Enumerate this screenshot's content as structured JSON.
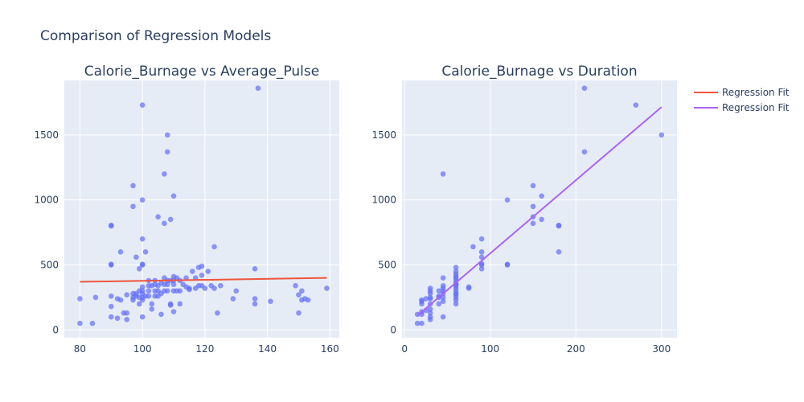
{
  "figure_title": "Comparison of Regression Models",
  "legend": {
    "placement": "top-right",
    "items": [
      {
        "label": "Regression Fit",
        "color": "#EF553B"
      },
      {
        "label": "Regression Fit",
        "color": "#AB63FA"
      }
    ]
  },
  "colors": {
    "plot_background": "#E5ECF6",
    "grid": "#ffffff",
    "marker": "#636EFA",
    "text": "#2a3f5f"
  },
  "chart_data": [
    {
      "type": "scatter",
      "title": "Calorie_Burnage vs Average_Pulse",
      "xlabel": "",
      "ylabel": "",
      "xlim": [
        75,
        163
      ],
      "ylim": [
        -60,
        1920
      ],
      "x_ticks": [
        80,
        100,
        120,
        140,
        160
      ],
      "y_ticks": [
        0,
        500,
        1000,
        1500
      ],
      "grid": true,
      "points": [
        [
          80,
          50
        ],
        [
          80,
          240
        ],
        [
          84,
          50
        ],
        [
          85,
          250
        ],
        [
          90,
          800
        ],
        [
          90,
          805
        ],
        [
          90,
          500
        ],
        [
          90,
          505
        ],
        [
          90,
          260
        ],
        [
          90,
          180
        ],
        [
          90,
          100
        ],
        [
          92,
          240
        ],
        [
          92,
          90
        ],
        [
          93,
          230
        ],
        [
          93,
          600
        ],
        [
          94,
          130
        ],
        [
          95,
          270
        ],
        [
          95,
          130
        ],
        [
          95,
          80
        ],
        [
          97,
          1110
        ],
        [
          97,
          950
        ],
        [
          97,
          280
        ],
        [
          97,
          250
        ],
        [
          97,
          230
        ],
        [
          98,
          560
        ],
        [
          98,
          280
        ],
        [
          98,
          260
        ],
        [
          99,
          470
        ],
        [
          99,
          300
        ],
        [
          99,
          250
        ],
        [
          99,
          200
        ],
        [
          100,
          1730
        ],
        [
          100,
          1000
        ],
        [
          100,
          700
        ],
        [
          100,
          505
        ],
        [
          100,
          500
        ],
        [
          100,
          330
        ],
        [
          100,
          300
        ],
        [
          100,
          280
        ],
        [
          100,
          250
        ],
        [
          100,
          230
        ],
        [
          100,
          100
        ],
        [
          101,
          600
        ],
        [
          101,
          260
        ],
        [
          102,
          380
        ],
        [
          102,
          340
        ],
        [
          102,
          300
        ],
        [
          102,
          260
        ],
        [
          103,
          340
        ],
        [
          103,
          200
        ],
        [
          103,
          160
        ],
        [
          104,
          380
        ],
        [
          104,
          350
        ],
        [
          104,
          300
        ],
        [
          104,
          260
        ],
        [
          105,
          870
        ],
        [
          105,
          340
        ],
        [
          105,
          300
        ],
        [
          105,
          260
        ],
        [
          106,
          360
        ],
        [
          106,
          280
        ],
        [
          106,
          120
        ],
        [
          107,
          1200
        ],
        [
          107,
          820
        ],
        [
          107,
          400
        ],
        [
          107,
          350
        ],
        [
          107,
          300
        ],
        [
          108,
          1500
        ],
        [
          108,
          1370
        ],
        [
          108,
          380
        ],
        [
          108,
          350
        ],
        [
          108,
          300
        ],
        [
          109,
          850
        ],
        [
          109,
          380
        ],
        [
          109,
          200
        ],
        [
          109,
          190
        ],
        [
          110,
          1030
        ],
        [
          110,
          410
        ],
        [
          110,
          380
        ],
        [
          110,
          350
        ],
        [
          110,
          300
        ],
        [
          110,
          140
        ],
        [
          111,
          400
        ],
        [
          111,
          300
        ],
        [
          112,
          380
        ],
        [
          112,
          300
        ],
        [
          112,
          200
        ],
        [
          113,
          350
        ],
        [
          114,
          400
        ],
        [
          114,
          330
        ],
        [
          115,
          320
        ],
        [
          115,
          310
        ],
        [
          116,
          450
        ],
        [
          117,
          400
        ],
        [
          117,
          320
        ],
        [
          118,
          480
        ],
        [
          118,
          340
        ],
        [
          119,
          490
        ],
        [
          119,
          420
        ],
        [
          119,
          340
        ],
        [
          120,
          320
        ],
        [
          121,
          450
        ],
        [
          122,
          340
        ],
        [
          123,
          640
        ],
        [
          123,
          320
        ],
        [
          124,
          130
        ],
        [
          125,
          340
        ],
        [
          129,
          240
        ],
        [
          130,
          300
        ],
        [
          136,
          470
        ],
        [
          136,
          240
        ],
        [
          136,
          200
        ],
        [
          137,
          1860
        ],
        [
          141,
          220
        ],
        [
          149,
          340
        ],
        [
          150,
          270
        ],
        [
          150,
          130
        ],
        [
          151,
          230
        ],
        [
          151,
          300
        ],
        [
          152,
          240
        ],
        [
          153,
          230
        ],
        [
          159,
          320
        ]
      ],
      "series": [
        {
          "name": "Regression Fit",
          "x": [
            80,
            159
          ],
          "y": [
            370,
            400
          ]
        }
      ]
    },
    {
      "type": "scatter",
      "title": "Calorie_Burnage vs Duration",
      "xlabel": "",
      "ylabel": "",
      "xlim": [
        -3,
        318
      ],
      "ylim": [
        -60,
        1920
      ],
      "x_ticks": [
        0,
        100,
        200,
        300
      ],
      "y_ticks": [
        0,
        500,
        1000,
        1500
      ],
      "grid": true,
      "points": [
        [
          15,
          50
        ],
        [
          15,
          120
        ],
        [
          20,
          50
        ],
        [
          20,
          120
        ],
        [
          20,
          140
        ],
        [
          20,
          200
        ],
        [
          20,
          220
        ],
        [
          20,
          230
        ],
        [
          25,
          240
        ],
        [
          25,
          150
        ],
        [
          30,
          80
        ],
        [
          30,
          100
        ],
        [
          30,
          130
        ],
        [
          30,
          160
        ],
        [
          30,
          200
        ],
        [
          30,
          240
        ],
        [
          30,
          250
        ],
        [
          30,
          280
        ],
        [
          30,
          300
        ],
        [
          30,
          320
        ],
        [
          40,
          200
        ],
        [
          40,
          250
        ],
        [
          40,
          260
        ],
        [
          40,
          300
        ],
        [
          45,
          100
        ],
        [
          45,
          1200
        ],
        [
          45,
          220
        ],
        [
          45,
          250
        ],
        [
          45,
          280
        ],
        [
          45,
          300
        ],
        [
          45,
          320
        ],
        [
          45,
          340
        ],
        [
          45,
          400
        ],
        [
          60,
          200
        ],
        [
          60,
          230
        ],
        [
          60,
          250
        ],
        [
          60,
          270
        ],
        [
          60,
          280
        ],
        [
          60,
          300
        ],
        [
          60,
          320
        ],
        [
          60,
          340
        ],
        [
          60,
          350
        ],
        [
          60,
          360
        ],
        [
          60,
          380
        ],
        [
          60,
          400
        ],
        [
          60,
          410
        ],
        [
          60,
          430
        ],
        [
          60,
          450
        ],
        [
          60,
          480
        ],
        [
          75,
          320
        ],
        [
          75,
          330
        ],
        [
          80,
          640
        ],
        [
          90,
          470
        ],
        [
          90,
          500
        ],
        [
          90,
          510
        ],
        [
          90,
          560
        ],
        [
          90,
          600
        ],
        [
          90,
          700
        ],
        [
          120,
          500
        ],
        [
          120,
          505
        ],
        [
          120,
          1000
        ],
        [
          150,
          820
        ],
        [
          150,
          870
        ],
        [
          150,
          950
        ],
        [
          150,
          1110
        ],
        [
          160,
          850
        ],
        [
          160,
          1030
        ],
        [
          180,
          600
        ],
        [
          180,
          800
        ],
        [
          180,
          805
        ],
        [
          210,
          1370
        ],
        [
          210,
          1860
        ],
        [
          270,
          1730
        ],
        [
          300,
          1500
        ]
      ],
      "series": [
        {
          "name": "Regression Fit",
          "x": [
            15,
            300
          ],
          "y": [
            110,
            1715
          ]
        }
      ]
    }
  ]
}
